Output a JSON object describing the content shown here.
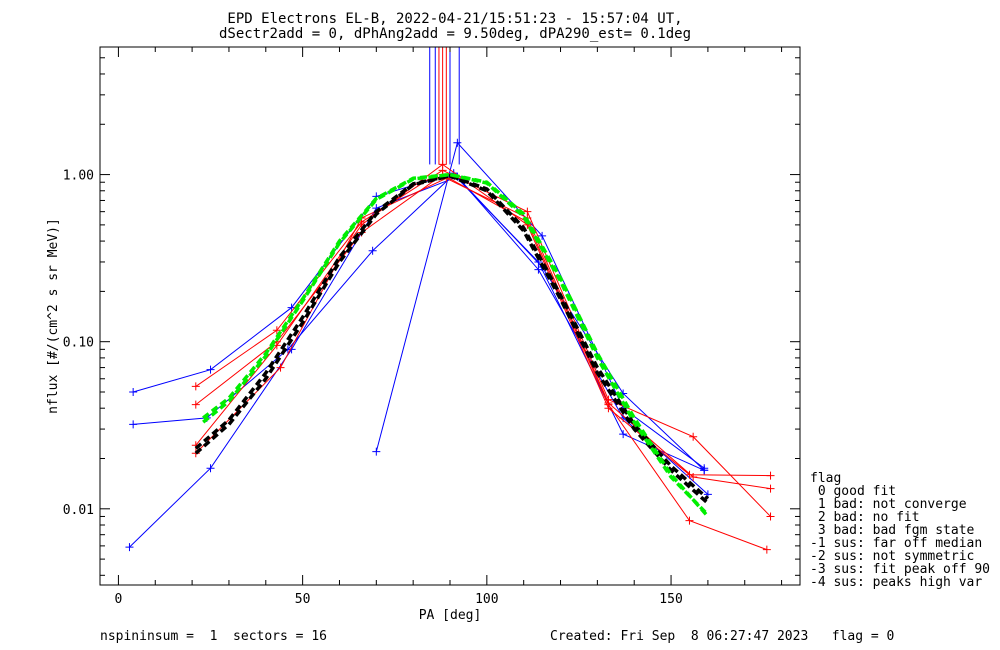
{
  "chart_data": {
    "type": "scatter",
    "title": "EPD Electrons EL-B, 2022-04-21/15:51:23 - 15:57:04 UT,",
    "subtitle": "dSectr2add = 0, dPhAng2add = 9.50deg, dPA290_est=   0.1deg",
    "xlabel": "PA [deg]",
    "ylabel": "nflux [#/(cm^2 s sr MeV)]",
    "xlim": [
      -5,
      185
    ],
    "ylim": [
      0.0035,
      5.8
    ],
    "yscale": "log",
    "grid": false,
    "x_ticks": [
      0,
      50,
      100,
      150
    ],
    "x_tick_labels": [
      "0",
      "50",
      "100",
      "150"
    ],
    "y_ticks": [
      0.01,
      0.1,
      1.0
    ],
    "y_tick_labels": [
      "0.01",
      "0.10",
      "1.00"
    ],
    "colors": {
      "blue": "#0000ff",
      "red": "#ff0000",
      "black": "#000000",
      "green": "#00ee00"
    },
    "series": [
      {
        "color": "blue",
        "marker": "+",
        "x": [
          4,
          25,
          47,
          70,
          91,
          115,
          137,
          159
        ],
        "y": [
          0.05,
          0.068,
          0.16,
          0.74,
          1.02,
          0.28,
          0.049,
          0.017
        ]
      },
      {
        "color": "blue",
        "marker": "+",
        "x": [
          4,
          24,
          46,
          69,
          91,
          114,
          137,
          159
        ],
        "y": [
          0.032,
          0.035,
          0.09,
          0.35,
          1.0,
          0.3,
          0.028,
          0.017
        ]
      },
      {
        "color": "blue",
        "marker": "+",
        "x": [
          3,
          25,
          47,
          70,
          92,
          114,
          137,
          160
        ],
        "y": [
          0.0059,
          0.0175,
          0.09,
          0.63,
          0.97,
          0.27,
          0.035,
          0.0122
        ]
      },
      {
        "color": "blue",
        "marker": "+",
        "x": [
          70,
          92,
          115,
          137,
          159
        ],
        "y": [
          0.022,
          1.55,
          0.43,
          0.04,
          0.0175
        ]
      },
      {
        "color": "red",
        "marker": "+",
        "x": [
          21,
          43,
          66,
          88,
          111,
          133,
          156,
          177
        ],
        "y": [
          0.054,
          0.117,
          0.52,
          1.06,
          0.6,
          0.045,
          0.027,
          0.009
        ]
      },
      {
        "color": "red",
        "marker": "+",
        "x": [
          21,
          43,
          66,
          88,
          111,
          133,
          155,
          176
        ],
        "y": [
          0.042,
          0.1,
          0.45,
          1.0,
          0.52,
          0.042,
          0.0085,
          0.0057
        ]
      },
      {
        "color": "red",
        "marker": "+",
        "x": [
          21,
          43,
          66,
          88,
          111,
          133,
          155,
          177
        ],
        "y": [
          0.024,
          0.095,
          0.5,
          1.15,
          0.5,
          0.04,
          0.016,
          0.0158
        ]
      },
      {
        "color": "red",
        "marker": "+",
        "x": [
          21,
          44,
          66,
          89,
          111,
          133,
          156,
          177
        ],
        "y": [
          0.0215,
          0.07,
          0.55,
          0.95,
          0.55,
          0.043,
          0.0155,
          0.0132
        ]
      }
    ],
    "fits": [
      {
        "color": "black",
        "style": "dashed",
        "x": [
          21,
          30,
          40,
          50,
          60,
          70,
          80,
          90,
          100,
          110,
          120,
          130,
          140,
          150,
          160
        ],
        "y": [
          0.0215,
          0.032,
          0.06,
          0.13,
          0.3,
          0.58,
          0.87,
          0.98,
          0.8,
          0.46,
          0.18,
          0.065,
          0.03,
          0.017,
          0.0108
        ]
      },
      {
        "color": "black",
        "style": "dashed",
        "x": [
          21,
          30,
          40,
          50,
          60,
          70,
          80,
          90,
          100,
          110,
          120,
          130,
          140,
          150,
          160
        ],
        "y": [
          0.023,
          0.034,
          0.065,
          0.14,
          0.32,
          0.6,
          0.88,
          0.985,
          0.82,
          0.48,
          0.19,
          0.07,
          0.032,
          0.018,
          0.0115
        ]
      },
      {
        "color": "green",
        "style": "dashed",
        "x": [
          23,
          30,
          40,
          50,
          60,
          70,
          80,
          90,
          100,
          110,
          120,
          130,
          140,
          150,
          160
        ],
        "y": [
          0.035,
          0.046,
          0.085,
          0.18,
          0.4,
          0.72,
          0.95,
          1.0,
          0.9,
          0.58,
          0.24,
          0.085,
          0.035,
          0.016,
          0.009
        ]
      },
      {
        "color": "green",
        "style": "dashed",
        "x": [
          23,
          30,
          40,
          50,
          60,
          70,
          80,
          90,
          100,
          110,
          120,
          130,
          140,
          150,
          160
        ],
        "y": [
          0.033,
          0.044,
          0.082,
          0.175,
          0.39,
          0.71,
          0.94,
          1.0,
          0.89,
          0.56,
          0.23,
          0.08,
          0.033,
          0.0155,
          0.0092
        ]
      }
    ],
    "vertical_lines": [
      {
        "color": "blue",
        "x": 84.5
      },
      {
        "color": "blue",
        "x": 86
      },
      {
        "color": "blue",
        "x": 90
      },
      {
        "color": "blue",
        "x": 92.5
      },
      {
        "color": "red",
        "x": 87
      },
      {
        "color": "red",
        "x": 88
      },
      {
        "color": "red",
        "x": 89
      }
    ]
  },
  "legend": {
    "title": "flag",
    "items": [
      " 0 good fit",
      " 1 bad: not converge",
      " 2 bad: no fit",
      " 3 bad: bad fgm state",
      "-1 sus: far off median",
      "-2 sus: not symmetric",
      "-3 sus: fit peak off 90",
      "-4 sus: peaks high var"
    ]
  },
  "footer": {
    "left": "nspininsum =  1  sectors = 16",
    "right": "Created: Fri Sep  8 06:27:47 2023   flag = 0"
  }
}
